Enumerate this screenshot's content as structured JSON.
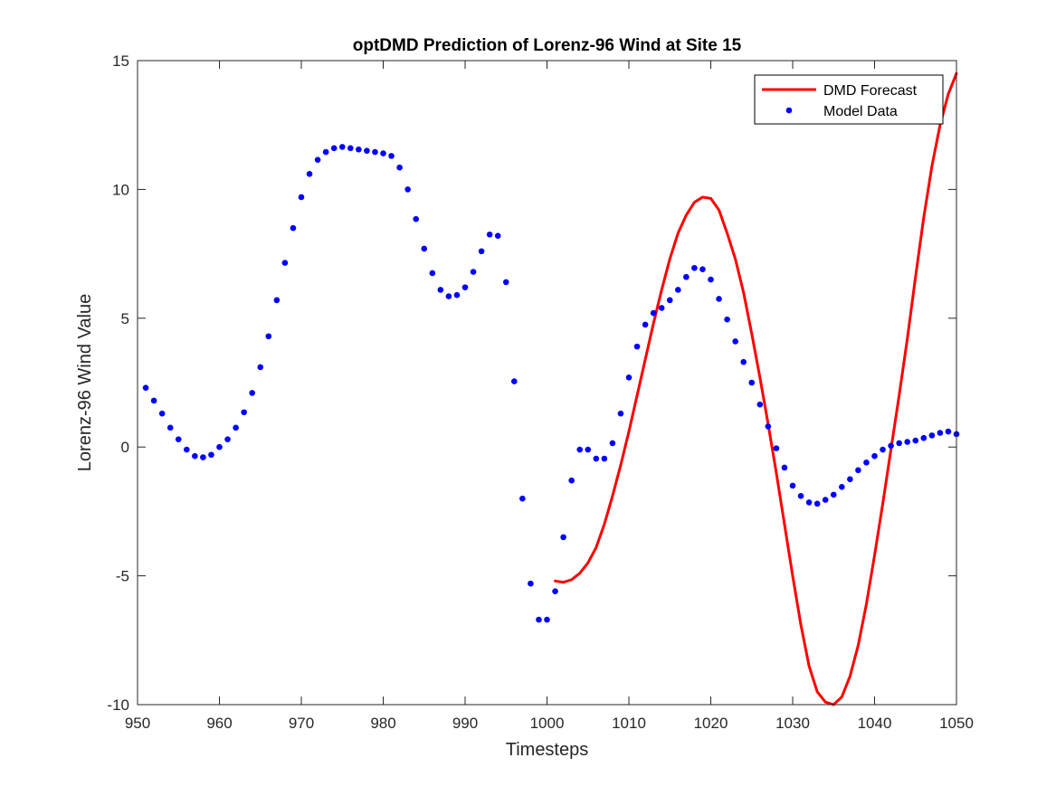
{
  "chart_data": {
    "type": "line",
    "title": "optDMD Prediction of Lorenz-96 Wind at Site 15",
    "xlabel": "Timesteps",
    "ylabel": "Lorenz-96 Wind Value",
    "xlim": [
      950,
      1050
    ],
    "ylim": [
      -10,
      15
    ],
    "xticks": [
      950,
      960,
      970,
      980,
      990,
      1000,
      1010,
      1020,
      1030,
      1040,
      1050
    ],
    "yticks": [
      -10,
      -5,
      0,
      5,
      10,
      15
    ],
    "grid": false,
    "legend_position": "top-right",
    "series": [
      {
        "name": "DMD Forecast",
        "style": "line",
        "color": "#ff0000",
        "x": [
          1001,
          1002,
          1003,
          1004,
          1005,
          1006,
          1007,
          1008,
          1009,
          1010,
          1011,
          1012,
          1013,
          1014,
          1015,
          1016,
          1017,
          1018,
          1019,
          1020,
          1021,
          1022,
          1023,
          1024,
          1025,
          1026,
          1027,
          1028,
          1029,
          1030,
          1031,
          1032,
          1033,
          1034,
          1035,
          1036,
          1037,
          1038,
          1039,
          1040,
          1041,
          1042,
          1043,
          1044,
          1045,
          1046,
          1047,
          1048,
          1049,
          1050
        ],
        "y": [
          -5.2,
          -5.25,
          -5.15,
          -4.9,
          -4.5,
          -3.9,
          -3.0,
          -1.9,
          -0.7,
          0.6,
          2.0,
          3.4,
          4.8,
          6.1,
          7.3,
          8.3,
          9.0,
          9.5,
          9.7,
          9.65,
          9.2,
          8.3,
          7.3,
          6.0,
          4.4,
          2.7,
          0.9,
          -1.0,
          -3.0,
          -5.0,
          -6.9,
          -8.5,
          -9.5,
          -9.9,
          -10.0,
          -9.7,
          -8.9,
          -7.7,
          -6.1,
          -4.2,
          -2.2,
          -0.1,
          2.0,
          4.2,
          6.6,
          8.9,
          10.9,
          12.5,
          13.7,
          14.5
        ]
      },
      {
        "name": "Model Data",
        "style": "markers",
        "color": "#0000ff",
        "x": [
          951,
          952,
          953,
          954,
          955,
          956,
          957,
          958,
          959,
          960,
          961,
          962,
          963,
          964,
          965,
          966,
          967,
          968,
          969,
          970,
          971,
          972,
          973,
          974,
          975,
          976,
          977,
          978,
          979,
          980,
          981,
          982,
          983,
          984,
          985,
          986,
          987,
          988,
          989,
          990,
          991,
          992,
          993,
          994,
          995,
          996,
          997,
          998,
          999,
          1000,
          1001,
          1002,
          1003,
          1004,
          1005,
          1006,
          1007,
          1008,
          1009,
          1010,
          1011,
          1012,
          1013,
          1014,
          1015,
          1016,
          1017,
          1018,
          1019,
          1020,
          1021,
          1022,
          1023,
          1024,
          1025,
          1026,
          1027,
          1028,
          1029,
          1030,
          1031,
          1032,
          1033,
          1034,
          1035,
          1036,
          1037,
          1038,
          1039,
          1040,
          1041,
          1042,
          1043,
          1044,
          1045,
          1046,
          1047,
          1048,
          1049,
          1050
        ],
        "y": [
          2.3,
          1.8,
          1.3,
          0.75,
          0.3,
          -0.1,
          -0.35,
          -0.4,
          -0.3,
          0.0,
          0.3,
          0.75,
          1.35,
          2.1,
          3.1,
          4.3,
          5.7,
          7.15,
          8.5,
          9.7,
          10.6,
          11.15,
          11.45,
          11.6,
          11.65,
          11.6,
          11.55,
          11.5,
          11.45,
          11.4,
          11.3,
          10.85,
          10.0,
          8.85,
          7.7,
          6.75,
          6.1,
          5.85,
          5.9,
          6.2,
          6.8,
          7.6,
          8.25,
          8.2,
          6.4,
          2.55,
          -2.0,
          -5.3,
          -6.7,
          -6.7,
          -5.6,
          -3.5,
          -1.3,
          -0.1,
          -0.1,
          -0.45,
          -0.45,
          0.15,
          1.3,
          2.7,
          3.9,
          4.75,
          5.2,
          5.4,
          5.7,
          6.1,
          6.6,
          6.95,
          6.9,
          6.5,
          5.75,
          4.95,
          4.1,
          3.3,
          2.5,
          1.65,
          0.8,
          -0.05,
          -0.8,
          -1.5,
          -1.9,
          -2.15,
          -2.2,
          -2.05,
          -1.85,
          -1.55,
          -1.25,
          -0.9,
          -0.6,
          -0.35,
          -0.1,
          0.05,
          0.15,
          0.2,
          0.25,
          0.35,
          0.45,
          0.55,
          0.6,
          0.5
        ]
      }
    ]
  }
}
